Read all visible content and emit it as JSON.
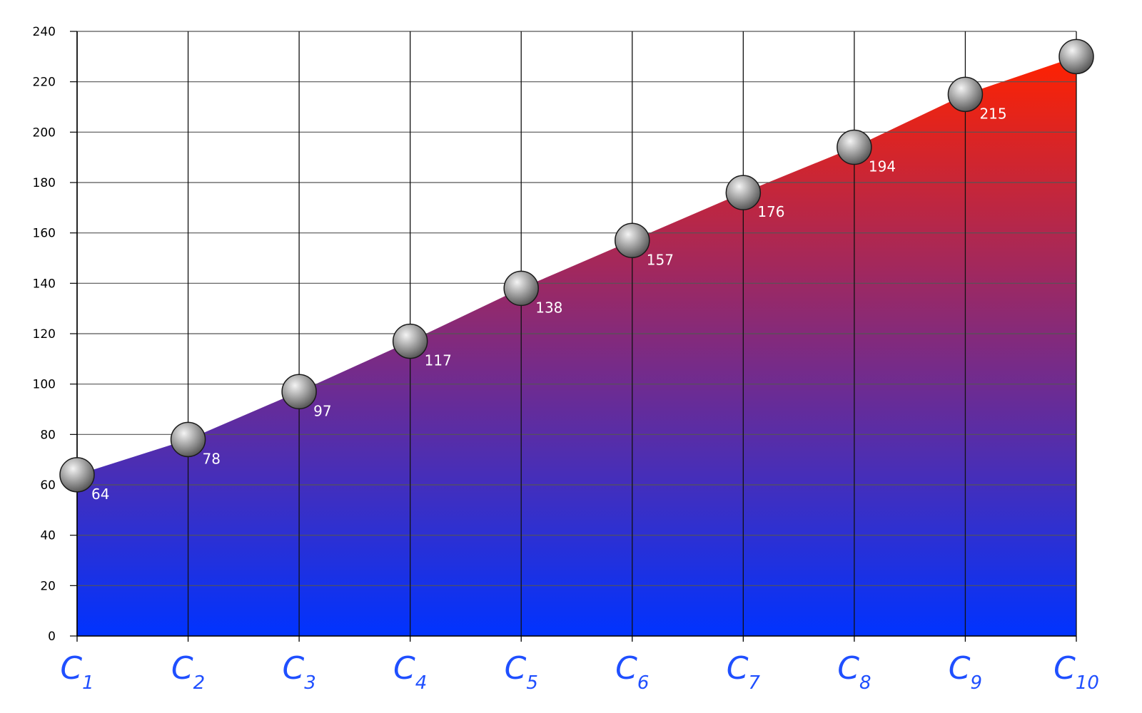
{
  "chart_data": {
    "type": "area",
    "title": "",
    "xlabel": "",
    "ylabel": "",
    "categories": [
      "C1",
      "C2",
      "C3",
      "C4",
      "C5",
      "C6",
      "C7",
      "C8",
      "C9",
      "C10"
    ],
    "category_labels": [
      {
        "main": "C",
        "sub": "1"
      },
      {
        "main": "C",
        "sub": "2"
      },
      {
        "main": "C",
        "sub": "3"
      },
      {
        "main": "C",
        "sub": "4"
      },
      {
        "main": "C",
        "sub": "5"
      },
      {
        "main": "C",
        "sub": "6"
      },
      {
        "main": "C",
        "sub": "7"
      },
      {
        "main": "C",
        "sub": "8"
      },
      {
        "main": "C",
        "sub": "9"
      },
      {
        "main": "C",
        "sub": "10"
      }
    ],
    "series": [
      {
        "values": [
          64,
          78,
          97,
          117,
          138,
          157,
          176,
          194,
          215,
          230
        ],
        "data_labels": [
          "64",
          "78",
          "97",
          "117",
          "138",
          "157",
          "176",
          "194",
          "215",
          ""
        ]
      }
    ],
    "ylim": [
      0,
      240
    ],
    "yticks": [
      0,
      20,
      40,
      60,
      80,
      100,
      120,
      140,
      160,
      180,
      200,
      220,
      240
    ],
    "grid": true,
    "legend": "none",
    "fill_gradient": {
      "top": "#ff2200",
      "bottom": "#0033ff"
    },
    "marker_color": "#8a8a8a",
    "data_label_color": "#ffffff",
    "tick_label_color": "#1f4fff"
  }
}
